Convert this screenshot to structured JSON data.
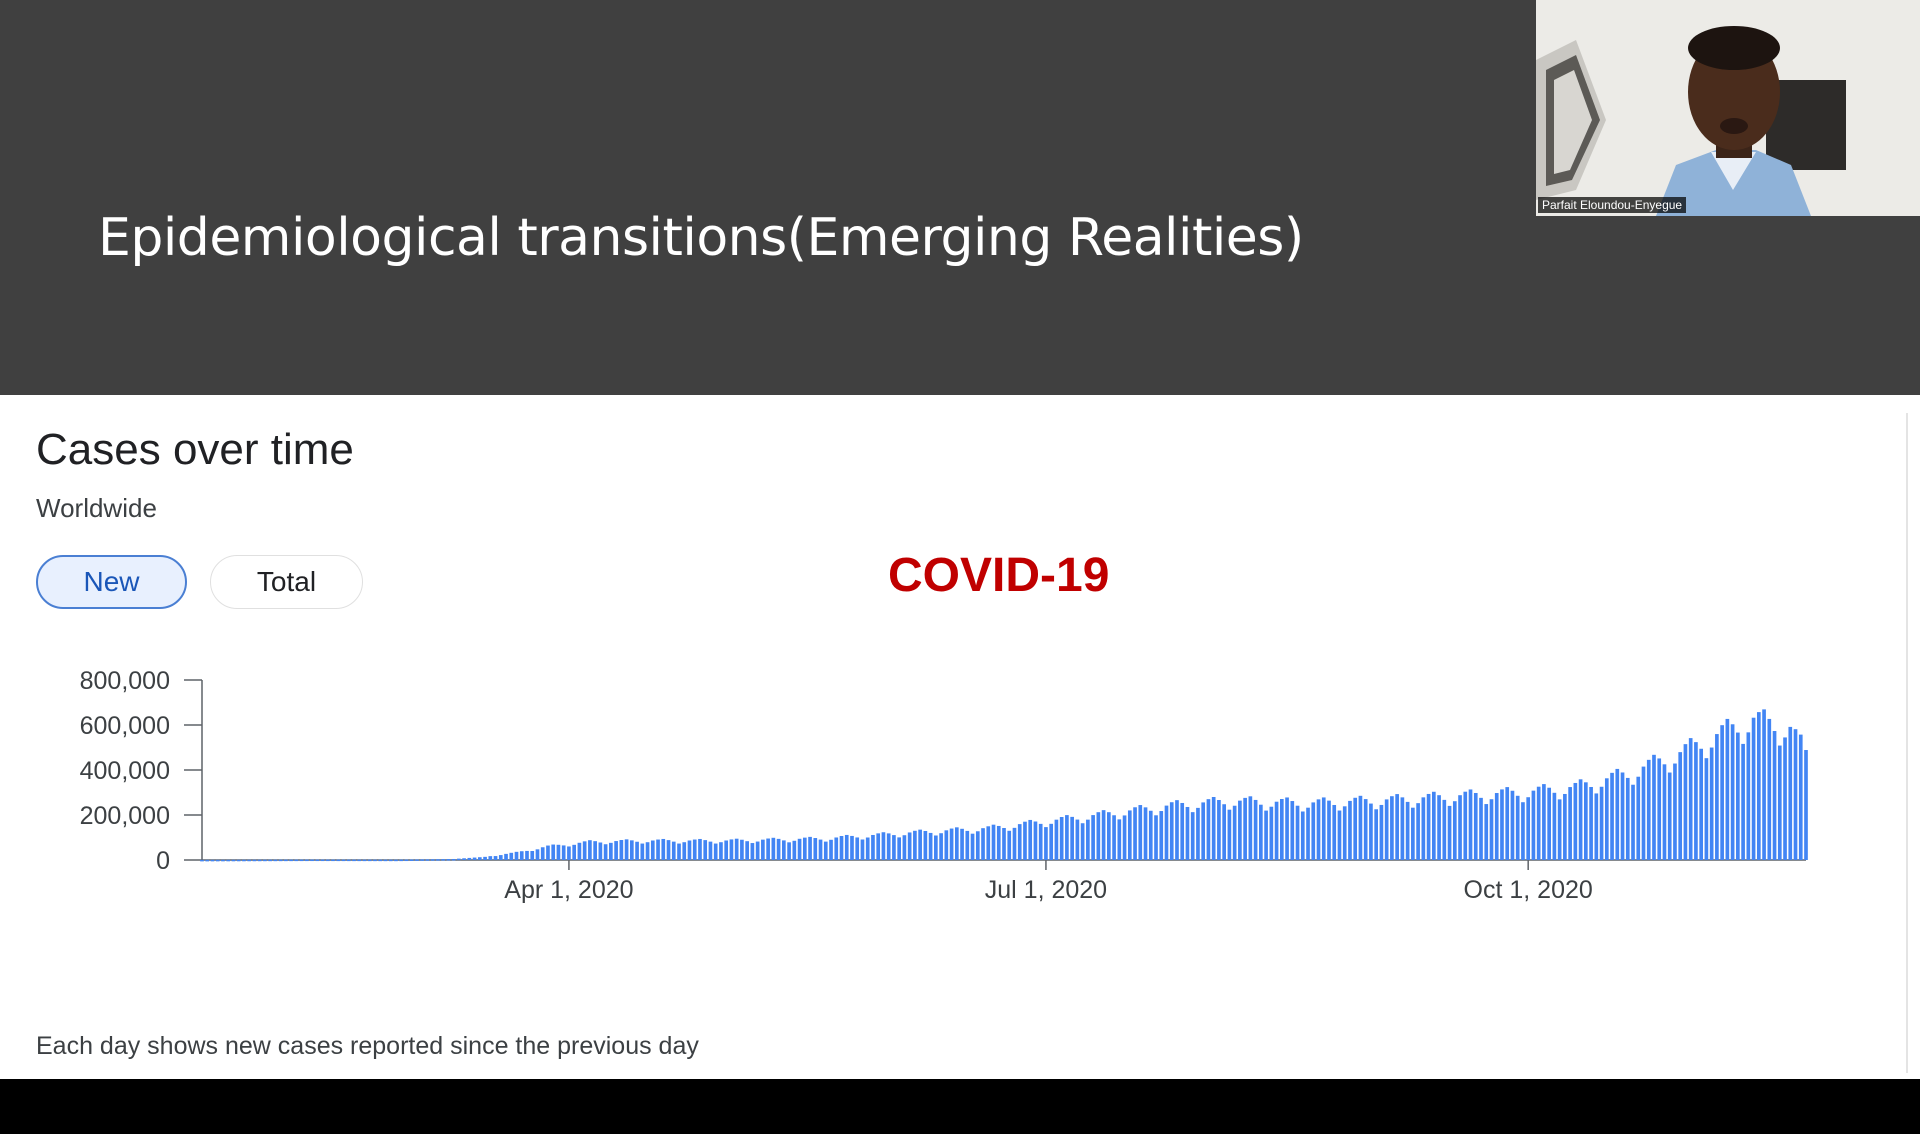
{
  "slide": {
    "title": "Epidemiological transitions(Emerging Realities)"
  },
  "video": {
    "participant_name": "Parfait Eloundou-Enyegue"
  },
  "card": {
    "title": "Cases over time",
    "subtitle": "Worldwide",
    "toggle": {
      "options": [
        "New",
        "Total"
      ],
      "selected": "New"
    },
    "overlay_label": "COVID-19",
    "footnote": "Each day shows new cases reported since the previous day"
  },
  "colors": {
    "header_bg": "#404040",
    "bar": "#4285f4",
    "selected_chip_border": "#4a7fd3",
    "covid_label": "#c00000"
  },
  "chart_data": {
    "type": "bar",
    "title": "",
    "xlabel": "",
    "ylabel": "",
    "x_range": [
      "2020-01-22",
      "2020-11-23"
    ],
    "ylim": [
      0,
      800000
    ],
    "y_ticks": [
      0,
      200000,
      400000,
      600000,
      800000
    ],
    "y_tick_labels": [
      "0",
      "200,000",
      "400,000",
      "600,000",
      "800,000"
    ],
    "x_ticks": [
      "2020-04-01",
      "2020-07-01",
      "2020-10-01"
    ],
    "x_tick_labels": [
      "Apr 1, 2020",
      "Jul 1, 2020",
      "Oct 1, 2020"
    ],
    "grid": false,
    "series": [
      {
        "anchors": [
          [
            "2020-01-22",
            500
          ],
          [
            "2020-02-12",
            2000
          ],
          [
            "2020-02-28",
            1500
          ],
          [
            "2020-03-10",
            4500
          ],
          [
            "2020-03-16",
            14000
          ],
          [
            "2020-03-22",
            33000
          ],
          [
            "2020-03-28",
            60000
          ],
          [
            "2020-04-05",
            80000
          ],
          [
            "2020-04-15",
            85000
          ],
          [
            "2020-05-01",
            85000
          ],
          [
            "2020-05-20",
            95000
          ],
          [
            "2020-06-05",
            120000
          ],
          [
            "2020-06-20",
            140000
          ],
          [
            "2020-07-01",
            170000
          ],
          [
            "2020-07-15",
            210000
          ],
          [
            "2020-07-25",
            240000
          ],
          [
            "2020-08-05",
            260000
          ],
          [
            "2020-08-20",
            250000
          ],
          [
            "2020-09-05",
            265000
          ],
          [
            "2020-09-20",
            285000
          ],
          [
            "2020-10-01",
            300000
          ],
          [
            "2020-10-10",
            320000
          ],
          [
            "2020-10-20",
            380000
          ],
          [
            "2020-10-30",
            470000
          ],
          [
            "2020-11-07",
            560000
          ],
          [
            "2020-11-13",
            620000
          ],
          [
            "2020-11-20",
            580000
          ],
          [
            "2020-11-23",
            470000
          ]
        ]
      }
    ]
  }
}
